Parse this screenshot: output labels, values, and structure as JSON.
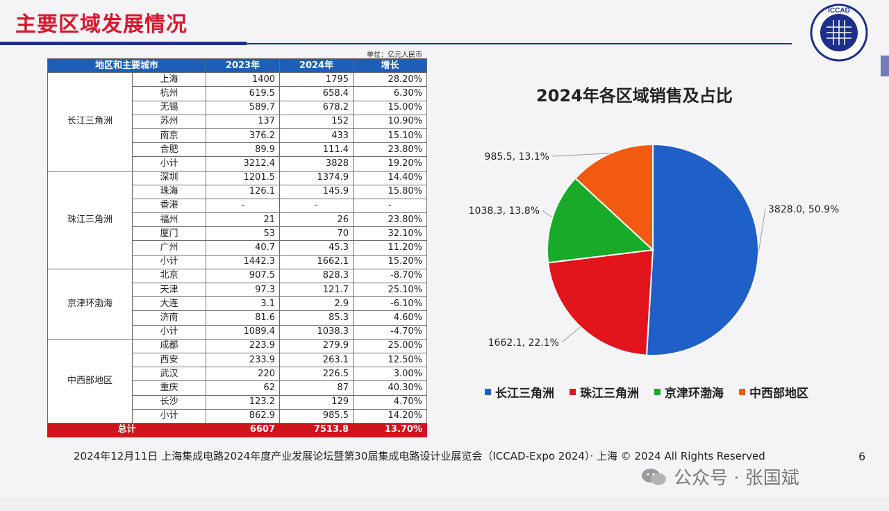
{
  "slide": {
    "title": "主要区域发展情况",
    "unit": "单位：亿元人民币",
    "logo_text": "ICCAD",
    "page_number": "6",
    "footer": "2024年12月11日 上海集成电路2024年度产业发展论坛暨第30届集成电路设计业展览会（ICCAD-Expo 2024）· 上海 © 2024 All Rights Reserved",
    "watermark": "公众号 · 张国斌"
  },
  "table": {
    "headers": [
      "地区和主要城市",
      "2023年",
      "2024年",
      "增长"
    ],
    "groups": [
      {
        "region": "长江三角洲",
        "rows": [
          {
            "city": "上海",
            "y2023": "1400",
            "y2024": "1795",
            "growth": "28.20%"
          },
          {
            "city": "杭州",
            "y2023": "619.5",
            "y2024": "658.4",
            "growth": "6.30%"
          },
          {
            "city": "无锡",
            "y2023": "589.7",
            "y2024": "678.2",
            "growth": "15.00%"
          },
          {
            "city": "苏州",
            "y2023": "137",
            "y2024": "152",
            "growth": "10.90%"
          },
          {
            "city": "南京",
            "y2023": "376.2",
            "y2024": "433",
            "growth": "15.10%"
          },
          {
            "city": "合肥",
            "y2023": "89.9",
            "y2024": "111.4",
            "growth": "23.80%"
          },
          {
            "city": "小计",
            "y2023": "3212.4",
            "y2024": "3828",
            "growth": "19.20%"
          }
        ]
      },
      {
        "region": "珠江三角洲",
        "rows": [
          {
            "city": "深圳",
            "y2023": "1201.5",
            "y2024": "1374.9",
            "growth": "14.40%"
          },
          {
            "city": "珠海",
            "y2023": "126.1",
            "y2024": "145.9",
            "growth": "15.80%"
          },
          {
            "city": "香港",
            "y2023": "-",
            "y2024": "-",
            "growth": "-"
          },
          {
            "city": "福州",
            "y2023": "21",
            "y2024": "26",
            "growth": "23.80%"
          },
          {
            "city": "厦门",
            "y2023": "53",
            "y2024": "70",
            "growth": "32.10%"
          },
          {
            "city": "广州",
            "y2023": "40.7",
            "y2024": "45.3",
            "growth": "11.20%"
          },
          {
            "city": "小计",
            "y2023": "1442.3",
            "y2024": "1662.1",
            "growth": "15.20%"
          }
        ]
      },
      {
        "region": "京津环渤海",
        "rows": [
          {
            "city": "北京",
            "y2023": "907.5",
            "y2024": "828.3",
            "growth": "-8.70%"
          },
          {
            "city": "天津",
            "y2023": "97.3",
            "y2024": "121.7",
            "growth": "25.10%"
          },
          {
            "city": "大连",
            "y2023": "3.1",
            "y2024": "2.9",
            "growth": "-6.10%"
          },
          {
            "city": "济南",
            "y2023": "81.6",
            "y2024": "85.3",
            "growth": "4.60%"
          },
          {
            "city": "小计",
            "y2023": "1089.4",
            "y2024": "1038.3",
            "growth": "-4.70%"
          }
        ]
      },
      {
        "region": "中西部地区",
        "rows": [
          {
            "city": "成都",
            "y2023": "223.9",
            "y2024": "279.9",
            "growth": "25.00%"
          },
          {
            "city": "西安",
            "y2023": "233.9",
            "y2024": "263.1",
            "growth": "12.50%"
          },
          {
            "city": "武汉",
            "y2023": "220",
            "y2024": "226.5",
            "growth": "3.00%"
          },
          {
            "city": "重庆",
            "y2023": "62",
            "y2024": "87",
            "growth": "40.30%"
          },
          {
            "city": "长沙",
            "y2023": "123.2",
            "y2024": "129",
            "growth": "4.70%"
          },
          {
            "city": "小计",
            "y2023": "862.9",
            "y2024": "985.5",
            "growth": "14.20%"
          }
        ]
      }
    ],
    "total": {
      "label": "总计",
      "y2023": "6607",
      "y2024": "7513.8",
      "growth": "13.70%"
    }
  },
  "chart_data": {
    "type": "pie",
    "title": "2024年各区域销售及占比",
    "slices": [
      {
        "name": "长江三角洲",
        "value": 3828.0,
        "percent": 50.9,
        "label": "3828.0, 50.9%",
        "color": "#1f5fc8"
      },
      {
        "name": "珠江三角洲",
        "value": 1662.1,
        "percent": 22.1,
        "label": "1662.1, 22.1%",
        "color": "#e0141a"
      },
      {
        "name": "京津环渤海",
        "value": 1038.3,
        "percent": 13.8,
        "label": "1038.3, 13.8%",
        "color": "#1aaa2a"
      },
      {
        "name": "中西部地区",
        "value": 985.5,
        "percent": 13.1,
        "label": "985.5, 13.1%",
        "color": "#f25a12"
      }
    ],
    "legend_position": "bottom"
  }
}
